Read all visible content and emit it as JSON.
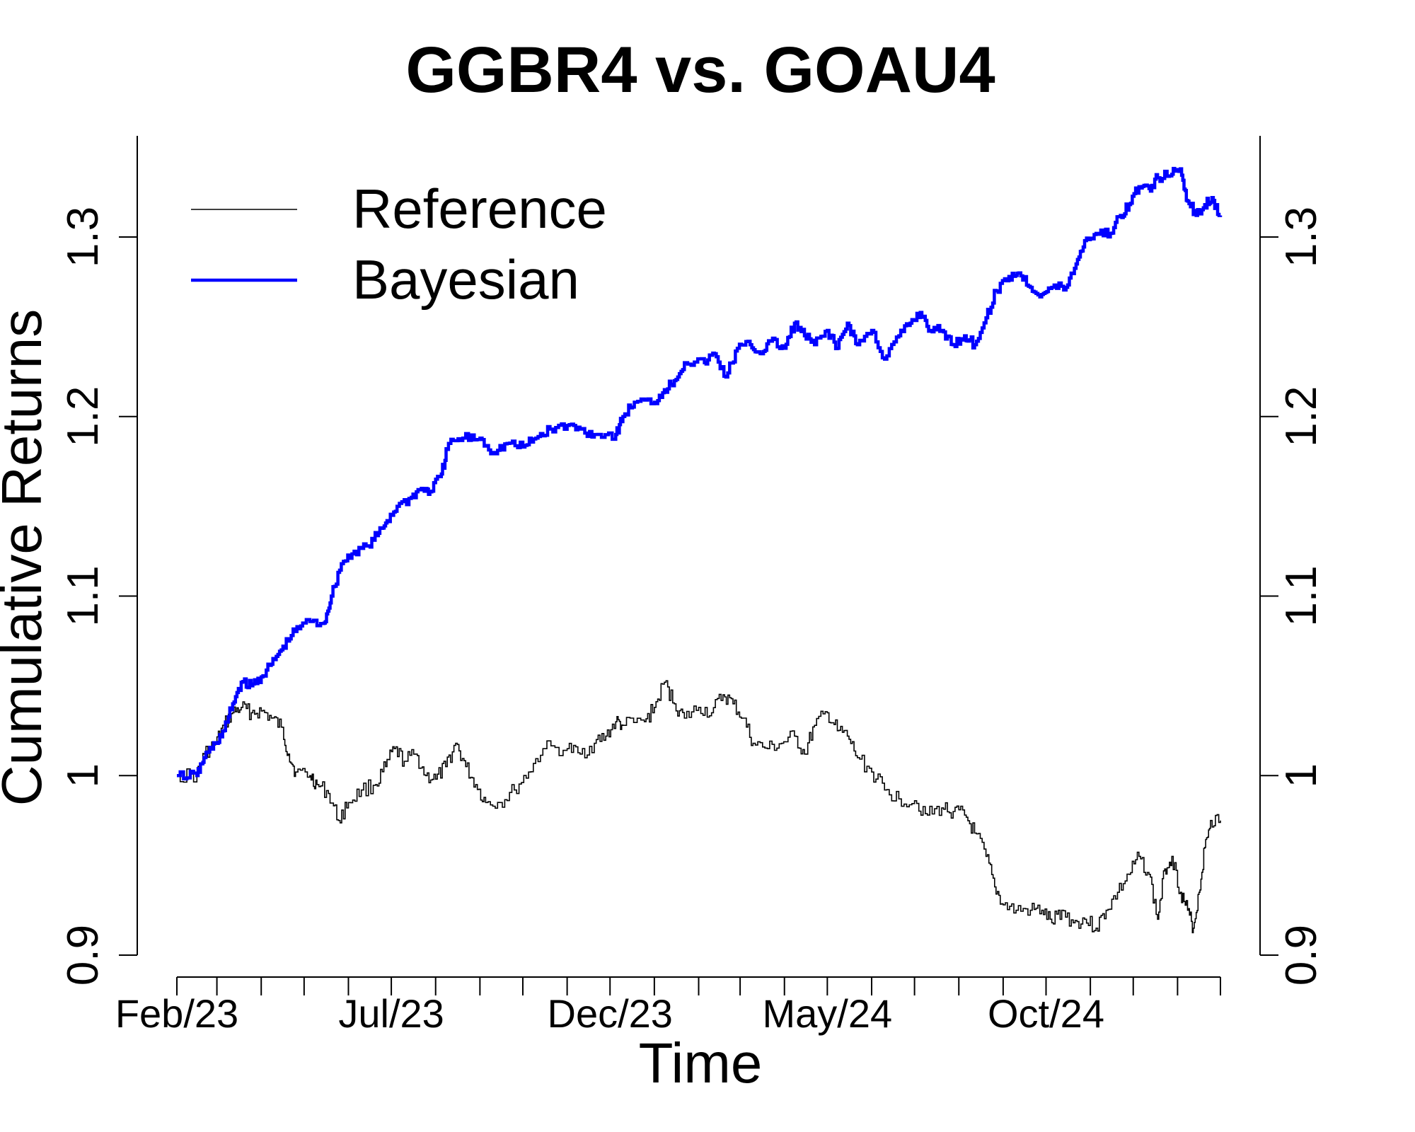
{
  "chart_data": {
    "type": "line",
    "title": "GGBR4 vs. GOAU4",
    "xlabel": "Time",
    "ylabel": "Cumulative Returns",
    "ylim": [
      0.9,
      1.36
    ],
    "yticks": [
      0.9,
      1.0,
      1.1,
      1.2,
      1.3
    ],
    "ytick_labels": [
      "0.9",
      "1",
      "1.1",
      "1.2",
      "1.3"
    ],
    "x_range": [
      "2023-02-01",
      "2025-01-31"
    ],
    "xtick_labels": [
      {
        "date": "2023-02-01",
        "label": "Feb/23"
      },
      {
        "date": "2023-07-01",
        "label": "Jul/23"
      },
      {
        "date": "2023-12-01",
        "label": "Dec/23"
      },
      {
        "date": "2024-05-01",
        "label": "May/24"
      },
      {
        "date": "2024-10-01",
        "label": "Oct/24"
      }
    ],
    "minor_ticks": [
      "2023-03-01",
      "2023-04-01",
      "2023-05-01",
      "2023-06-01",
      "2023-08-01",
      "2023-09-01",
      "2023-10-01",
      "2023-11-01",
      "2024-01-01",
      "2024-02-01",
      "2024-03-01",
      "2024-04-01",
      "2024-06-01",
      "2024-07-01",
      "2024-08-01",
      "2024-09-01",
      "2024-11-01",
      "2024-12-01",
      "2025-01-01",
      "2025-01-31"
    ],
    "legend_position": "top-left",
    "grid": false,
    "series": [
      {
        "name": "Reference",
        "color": "#000000",
        "line": "thin",
        "points": [
          [
            "2023-02-01",
            1.0
          ],
          [
            "2023-02-15",
            1.0
          ],
          [
            "2023-02-20",
            1.012
          ],
          [
            "2023-02-28",
            1.018
          ],
          [
            "2023-03-06",
            1.028
          ],
          [
            "2023-03-12",
            1.035
          ],
          [
            "2023-03-18",
            1.038
          ],
          [
            "2023-03-25",
            1.035
          ],
          [
            "2023-04-01",
            1.036
          ],
          [
            "2023-04-08",
            1.032
          ],
          [
            "2023-04-15",
            1.027
          ],
          [
            "2023-04-20",
            1.012
          ],
          [
            "2023-04-25",
            1.002
          ],
          [
            "2023-05-05",
            1.0
          ],
          [
            "2023-05-10",
            0.995
          ],
          [
            "2023-05-18",
            0.99
          ],
          [
            "2023-05-25",
            0.975
          ],
          [
            "2023-06-01",
            0.985
          ],
          [
            "2023-06-10",
            0.992
          ],
          [
            "2023-06-20",
            0.995
          ],
          [
            "2023-06-27",
            1.005
          ],
          [
            "2023-07-03",
            1.015
          ],
          [
            "2023-07-10",
            1.008
          ],
          [
            "2023-07-18",
            1.012
          ],
          [
            "2023-07-25",
            1.0
          ],
          [
            "2023-08-01",
            0.998
          ],
          [
            "2023-08-08",
            1.005
          ],
          [
            "2023-08-15",
            1.018
          ],
          [
            "2023-08-22",
            1.005
          ],
          [
            "2023-08-29",
            0.995
          ],
          [
            "2023-09-05",
            0.985
          ],
          [
            "2023-09-15",
            0.985
          ],
          [
            "2023-09-25",
            0.992
          ],
          [
            "2023-10-05",
            1.002
          ],
          [
            "2023-10-15",
            1.015
          ],
          [
            "2023-11-01",
            1.015
          ],
          [
            "2023-11-10",
            1.012
          ],
          [
            "2023-11-20",
            1.018
          ],
          [
            "2023-11-28",
            1.022
          ],
          [
            "2023-12-05",
            1.03
          ],
          [
            "2023-12-10",
            1.028
          ],
          [
            "2023-12-25",
            1.03
          ],
          [
            "2024-01-01",
            1.038
          ],
          [
            "2024-01-08",
            1.052
          ],
          [
            "2024-01-15",
            1.04
          ],
          [
            "2024-01-22",
            1.032
          ],
          [
            "2024-02-01",
            1.038
          ],
          [
            "2024-02-10",
            1.035
          ],
          [
            "2024-02-18",
            1.045
          ],
          [
            "2024-02-25",
            1.04
          ],
          [
            "2024-03-03",
            1.032
          ],
          [
            "2024-03-10",
            1.018
          ],
          [
            "2024-03-20",
            1.015
          ],
          [
            "2024-03-30",
            1.018
          ],
          [
            "2024-04-08",
            1.022
          ],
          [
            "2024-04-15",
            1.012
          ],
          [
            "2024-04-22",
            1.028
          ],
          [
            "2024-05-01",
            1.035
          ],
          [
            "2024-05-08",
            1.025
          ],
          [
            "2024-05-15",
            1.022
          ],
          [
            "2024-05-22",
            1.01
          ],
          [
            "2024-06-01",
            1.002
          ],
          [
            "2024-06-10",
            0.992
          ],
          [
            "2024-06-20",
            0.987
          ],
          [
            "2024-07-01",
            0.986
          ],
          [
            "2024-07-10",
            0.978
          ],
          [
            "2024-07-20",
            0.982
          ],
          [
            "2024-07-28",
            0.98
          ],
          [
            "2024-08-05",
            0.978
          ],
          [
            "2024-08-12",
            0.968
          ],
          [
            "2024-08-20",
            0.955
          ],
          [
            "2024-08-26",
            0.938
          ],
          [
            "2024-09-01",
            0.928
          ],
          [
            "2024-09-10",
            0.925
          ],
          [
            "2024-09-20",
            0.925
          ],
          [
            "2024-09-28",
            0.925
          ],
          [
            "2024-10-05",
            0.918
          ],
          [
            "2024-10-12",
            0.925
          ],
          [
            "2024-10-20",
            0.918
          ],
          [
            "2024-10-28",
            0.92
          ],
          [
            "2024-11-05",
            0.915
          ],
          [
            "2024-11-12",
            0.925
          ],
          [
            "2024-11-20",
            0.935
          ],
          [
            "2024-11-28",
            0.945
          ],
          [
            "2024-12-05",
            0.955
          ],
          [
            "2024-12-12",
            0.945
          ],
          [
            "2024-12-18",
            0.92
          ],
          [
            "2024-12-23",
            0.948
          ],
          [
            "2024-12-28",
            0.955
          ],
          [
            "2025-01-03",
            0.935
          ],
          [
            "2025-01-08",
            0.925
          ],
          [
            "2025-01-12",
            0.915
          ],
          [
            "2025-01-16",
            0.935
          ],
          [
            "2025-01-20",
            0.96
          ],
          [
            "2025-01-24",
            0.975
          ],
          [
            "2025-01-31",
            0.975
          ]
        ]
      },
      {
        "name": "Bayesian",
        "color": "#0000ff",
        "line": "thick",
        "points": [
          [
            "2023-02-01",
            1.0
          ],
          [
            "2023-02-15",
            1.0
          ],
          [
            "2023-02-20",
            1.01
          ],
          [
            "2023-02-28",
            1.018
          ],
          [
            "2023-03-06",
            1.025
          ],
          [
            "2023-03-12",
            1.04
          ],
          [
            "2023-03-18",
            1.052
          ],
          [
            "2023-03-25",
            1.05
          ],
          [
            "2023-04-01",
            1.055
          ],
          [
            "2023-04-08",
            1.062
          ],
          [
            "2023-04-15",
            1.07
          ],
          [
            "2023-04-22",
            1.078
          ],
          [
            "2023-04-30",
            1.085
          ],
          [
            "2023-05-15",
            1.085
          ],
          [
            "2023-05-20",
            1.1
          ],
          [
            "2023-05-27",
            1.118
          ],
          [
            "2023-06-05",
            1.125
          ],
          [
            "2023-06-15",
            1.128
          ],
          [
            "2023-06-22",
            1.135
          ],
          [
            "2023-06-28",
            1.142
          ],
          [
            "2023-07-05",
            1.15
          ],
          [
            "2023-07-15",
            1.155
          ],
          [
            "2023-07-22",
            1.16
          ],
          [
            "2023-07-28",
            1.158
          ],
          [
            "2023-08-05",
            1.168
          ],
          [
            "2023-08-10",
            1.185
          ],
          [
            "2023-08-20",
            1.188
          ],
          [
            "2023-09-01",
            1.188
          ],
          [
            "2023-09-10",
            1.18
          ],
          [
            "2023-09-20",
            1.185
          ],
          [
            "2023-10-01",
            1.183
          ],
          [
            "2023-10-10",
            1.188
          ],
          [
            "2023-10-20",
            1.193
          ],
          [
            "2023-11-01",
            1.195
          ],
          [
            "2023-11-10",
            1.193
          ],
          [
            "2023-11-20",
            1.19
          ],
          [
            "2023-12-05",
            1.19
          ],
          [
            "2023-12-10",
            1.2
          ],
          [
            "2023-12-18",
            1.208
          ],
          [
            "2024-01-01",
            1.208
          ],
          [
            "2024-01-08",
            1.215
          ],
          [
            "2024-01-15",
            1.22
          ],
          [
            "2024-01-22",
            1.23
          ],
          [
            "2024-02-05",
            1.23
          ],
          [
            "2024-02-12",
            1.235
          ],
          [
            "2024-02-20",
            1.222
          ],
          [
            "2024-02-28",
            1.238
          ],
          [
            "2024-03-08",
            1.24
          ],
          [
            "2024-03-15",
            1.235
          ],
          [
            "2024-03-22",
            1.242
          ],
          [
            "2024-04-01",
            1.238
          ],
          [
            "2024-04-08",
            1.252
          ],
          [
            "2024-04-15",
            1.245
          ],
          [
            "2024-04-22",
            1.24
          ],
          [
            "2024-05-01",
            1.248
          ],
          [
            "2024-05-08",
            1.238
          ],
          [
            "2024-05-15",
            1.252
          ],
          [
            "2024-05-22",
            1.24
          ],
          [
            "2024-06-01",
            1.248
          ],
          [
            "2024-06-10",
            1.232
          ],
          [
            "2024-06-20",
            1.245
          ],
          [
            "2024-06-28",
            1.252
          ],
          [
            "2024-07-05",
            1.258
          ],
          [
            "2024-07-12",
            1.248
          ],
          [
            "2024-07-20",
            1.248
          ],
          [
            "2024-07-28",
            1.24
          ],
          [
            "2024-08-05",
            1.245
          ],
          [
            "2024-08-12",
            1.24
          ],
          [
            "2024-08-20",
            1.255
          ],
          [
            "2024-08-27",
            1.27
          ],
          [
            "2024-09-05",
            1.278
          ],
          [
            "2024-09-12",
            1.28
          ],
          [
            "2024-09-20",
            1.272
          ],
          [
            "2024-09-28",
            1.268
          ],
          [
            "2024-10-05",
            1.272
          ],
          [
            "2024-10-15",
            1.272
          ],
          [
            "2024-10-22",
            1.285
          ],
          [
            "2024-10-28",
            1.298
          ],
          [
            "2024-11-05",
            1.302
          ],
          [
            "2024-11-15",
            1.302
          ],
          [
            "2024-11-22",
            1.312
          ],
          [
            "2024-11-28",
            1.318
          ],
          [
            "2024-12-05",
            1.328
          ],
          [
            "2024-12-12",
            1.327
          ],
          [
            "2024-12-18",
            1.333
          ],
          [
            "2024-12-28",
            1.335
          ],
          [
            "2025-01-03",
            1.338
          ],
          [
            "2025-01-08",
            1.32
          ],
          [
            "2025-01-14",
            1.312
          ],
          [
            "2025-01-20",
            1.318
          ],
          [
            "2025-01-25",
            1.322
          ],
          [
            "2025-01-31",
            1.312
          ]
        ]
      }
    ]
  }
}
